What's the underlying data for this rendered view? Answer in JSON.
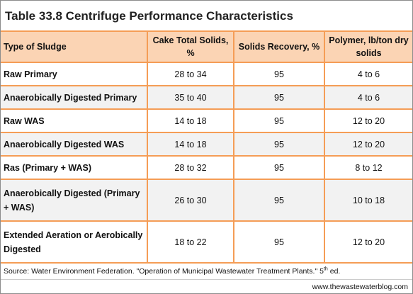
{
  "title": "Table 33.8 Centrifuge Performance Characteristics",
  "table": {
    "header": [
      "Type of Sludge",
      "Cake Total Solids, %",
      "Solids Recovery, %",
      "Polymer, lb/ton dry solids"
    ],
    "rows": [
      [
        "Raw Primary",
        "28 to 34",
        "95",
        "4 to 6"
      ],
      [
        "Anaerobically Digested Primary",
        "35 to 40",
        "95",
        "4 to 6"
      ],
      [
        "Raw WAS",
        "14 to 18",
        "95",
        "12 to 20"
      ],
      [
        "Anaerobically Digested WAS",
        "14 to 18",
        "95",
        "12 to 20"
      ],
      [
        "Ras (Primary + WAS)",
        "28 to 32",
        "95",
        "8 to 12"
      ],
      [
        "Anaerobically Digested (Primary + WAS)",
        "26 to 30",
        "95",
        "10 to 18"
      ],
      [
        "Extended Aeration or Aerobically Digested",
        "18 to 22",
        "95",
        "12 to 20"
      ]
    ]
  },
  "source": {
    "text": "Source: Water Environment Federation. \"Operation of Municipal Wastewater Treatment Plants.\" 5",
    "superscript": "th",
    "suffix": " ed."
  },
  "website": "www.thewastewaterblog.com"
}
